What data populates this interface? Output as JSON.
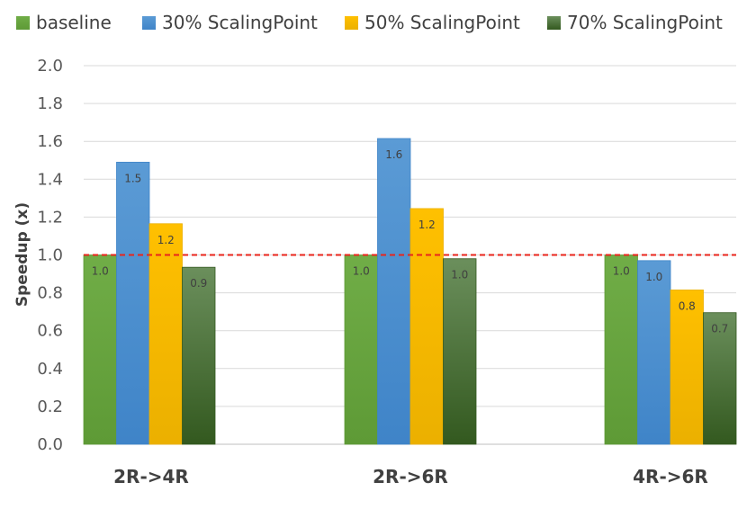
{
  "chart_data": {
    "type": "bar",
    "title": "",
    "xlabel": "",
    "ylabel": "Speedup (x)",
    "ylim": [
      0,
      2.0
    ],
    "yticks": [
      "0.0",
      "0.2",
      "0.4",
      "0.6",
      "0.8",
      "1.0",
      "1.2",
      "1.4",
      "1.6",
      "1.8",
      "2.0"
    ],
    "grid": true,
    "legend_position": "top",
    "reference_line": {
      "y": 1.0,
      "style": "dashed",
      "color": "#e8251c"
    },
    "categories": [
      "2R->4R",
      "2R->6R",
      "4R->6R"
    ],
    "series": [
      {
        "name": "baseline",
        "color": "#70ad47",
        "dark": "#5e9a36",
        "values": [
          1.0,
          1.0,
          1.0
        ],
        "labels": [
          "1.0",
          "1.0",
          "1.0"
        ]
      },
      {
        "name": "30% ScalingPoint",
        "color": "#5b9bd5",
        "dark": "#3f84c8",
        "values": [
          1.49,
          1.615,
          0.97
        ],
        "labels": [
          "1.5",
          "1.6",
          "1.0"
        ]
      },
      {
        "name": "50% ScalingPoint",
        "color": "#ffc000",
        "dark": "#ebb000",
        "values": [
          1.165,
          1.245,
          0.815
        ],
        "labels": [
          "1.2",
          "1.2",
          "0.8"
        ]
      },
      {
        "name": "70% ScalingPoint",
        "color": "#3f6f2a",
        "dark": "#33591f",
        "light": "#6b8f5c",
        "values": [
          0.935,
          0.98,
          0.695
        ],
        "labels": [
          "0.9",
          "1.0",
          "0.7"
        ]
      }
    ]
  }
}
